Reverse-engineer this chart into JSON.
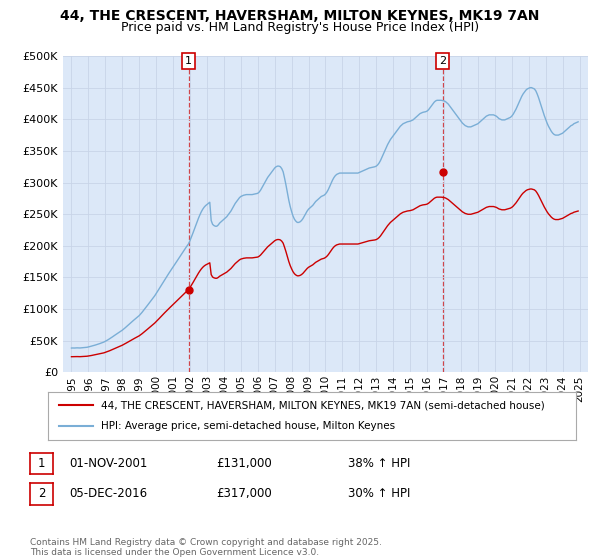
{
  "title": "44, THE CRESCENT, HAVERSHAM, MILTON KEYNES, MK19 7AN",
  "subtitle": "Price paid vs. HM Land Registry's House Price Index (HPI)",
  "background_color": "#ffffff",
  "grid_color": "#c8d4e8",
  "plot_bg_color": "#dce8f8",
  "sale1_date_num": 2001.917,
  "sale1_price": 131000,
  "sale2_date_num": 2016.917,
  "sale2_price": 317000,
  "red_line_color": "#cc0000",
  "blue_line_color": "#7aaed6",
  "legend_label_red": "44, THE CRESCENT, HAVERSHAM, MILTON KEYNES, MK19 7AN (semi-detached house)",
  "legend_label_blue": "HPI: Average price, semi-detached house, Milton Keynes",
  "annotation1_label": "1",
  "annotation1_date": "01-NOV-2001",
  "annotation1_price": "£131,000",
  "annotation1_hpi": "38% ↑ HPI",
  "annotation2_label": "2",
  "annotation2_date": "05-DEC-2016",
  "annotation2_price": "£317,000",
  "annotation2_hpi": "30% ↑ HPI",
  "footer_text": "Contains HM Land Registry data © Crown copyright and database right 2025.\nThis data is licensed under the Open Government Licence v3.0.",
  "ylim_max": 500000,
  "ylim_min": 0,
  "xlim_min": 1994.5,
  "xlim_max": 2025.5,
  "xlabel_years": [
    1995,
    1996,
    1997,
    1998,
    1999,
    2000,
    2001,
    2002,
    2003,
    2004,
    2005,
    2006,
    2007,
    2008,
    2009,
    2010,
    2011,
    2012,
    2013,
    2014,
    2015,
    2016,
    2017,
    2018,
    2019,
    2020,
    2021,
    2022,
    2023,
    2024,
    2025
  ],
  "hpi_dates": [
    1995.0,
    1995.083,
    1995.167,
    1995.25,
    1995.333,
    1995.417,
    1995.5,
    1995.583,
    1995.667,
    1995.75,
    1995.833,
    1995.917,
    1996.0,
    1996.083,
    1996.167,
    1996.25,
    1996.333,
    1996.417,
    1996.5,
    1996.583,
    1996.667,
    1996.75,
    1996.833,
    1996.917,
    1997.0,
    1997.083,
    1997.167,
    1997.25,
    1997.333,
    1997.417,
    1997.5,
    1997.583,
    1997.667,
    1997.75,
    1997.833,
    1997.917,
    1998.0,
    1998.083,
    1998.167,
    1998.25,
    1998.333,
    1998.417,
    1998.5,
    1998.583,
    1998.667,
    1998.75,
    1998.833,
    1998.917,
    1999.0,
    1999.083,
    1999.167,
    1999.25,
    1999.333,
    1999.417,
    1999.5,
    1999.583,
    1999.667,
    1999.75,
    1999.833,
    1999.917,
    2000.0,
    2000.083,
    2000.167,
    2000.25,
    2000.333,
    2000.417,
    2000.5,
    2000.583,
    2000.667,
    2000.75,
    2000.833,
    2000.917,
    2001.0,
    2001.083,
    2001.167,
    2001.25,
    2001.333,
    2001.417,
    2001.5,
    2001.583,
    2001.667,
    2001.75,
    2001.833,
    2001.917,
    2002.0,
    2002.083,
    2002.167,
    2002.25,
    2002.333,
    2002.417,
    2002.5,
    2002.583,
    2002.667,
    2002.75,
    2002.833,
    2002.917,
    2003.0,
    2003.083,
    2003.167,
    2003.25,
    2003.333,
    2003.417,
    2003.5,
    2003.583,
    2003.667,
    2003.75,
    2003.833,
    2003.917,
    2004.0,
    2004.083,
    2004.167,
    2004.25,
    2004.333,
    2004.417,
    2004.5,
    2004.583,
    2004.667,
    2004.75,
    2004.833,
    2004.917,
    2005.0,
    2005.083,
    2005.167,
    2005.25,
    2005.333,
    2005.417,
    2005.5,
    2005.583,
    2005.667,
    2005.75,
    2005.833,
    2005.917,
    2006.0,
    2006.083,
    2006.167,
    2006.25,
    2006.333,
    2006.417,
    2006.5,
    2006.583,
    2006.667,
    2006.75,
    2006.833,
    2006.917,
    2007.0,
    2007.083,
    2007.167,
    2007.25,
    2007.333,
    2007.417,
    2007.5,
    2007.583,
    2007.667,
    2007.75,
    2007.833,
    2007.917,
    2008.0,
    2008.083,
    2008.167,
    2008.25,
    2008.333,
    2008.417,
    2008.5,
    2008.583,
    2008.667,
    2008.75,
    2008.833,
    2008.917,
    2009.0,
    2009.083,
    2009.167,
    2009.25,
    2009.333,
    2009.417,
    2009.5,
    2009.583,
    2009.667,
    2009.75,
    2009.833,
    2009.917,
    2010.0,
    2010.083,
    2010.167,
    2010.25,
    2010.333,
    2010.417,
    2010.5,
    2010.583,
    2010.667,
    2010.75,
    2010.833,
    2010.917,
    2011.0,
    2011.083,
    2011.167,
    2011.25,
    2011.333,
    2011.417,
    2011.5,
    2011.583,
    2011.667,
    2011.75,
    2011.833,
    2011.917,
    2012.0,
    2012.083,
    2012.167,
    2012.25,
    2012.333,
    2012.417,
    2012.5,
    2012.583,
    2012.667,
    2012.75,
    2012.833,
    2012.917,
    2013.0,
    2013.083,
    2013.167,
    2013.25,
    2013.333,
    2013.417,
    2013.5,
    2013.583,
    2013.667,
    2013.75,
    2013.833,
    2013.917,
    2014.0,
    2014.083,
    2014.167,
    2014.25,
    2014.333,
    2014.417,
    2014.5,
    2014.583,
    2014.667,
    2014.75,
    2014.833,
    2014.917,
    2015.0,
    2015.083,
    2015.167,
    2015.25,
    2015.333,
    2015.417,
    2015.5,
    2015.583,
    2015.667,
    2015.75,
    2015.833,
    2015.917,
    2016.0,
    2016.083,
    2016.167,
    2016.25,
    2016.333,
    2016.417,
    2016.5,
    2016.583,
    2016.667,
    2016.75,
    2016.833,
    2016.917,
    2017.0,
    2017.083,
    2017.167,
    2017.25,
    2017.333,
    2017.417,
    2017.5,
    2017.583,
    2017.667,
    2017.75,
    2017.833,
    2017.917,
    2018.0,
    2018.083,
    2018.167,
    2018.25,
    2018.333,
    2018.417,
    2018.5,
    2018.583,
    2018.667,
    2018.75,
    2018.833,
    2018.917,
    2019.0,
    2019.083,
    2019.167,
    2019.25,
    2019.333,
    2019.417,
    2019.5,
    2019.583,
    2019.667,
    2019.75,
    2019.833,
    2019.917,
    2020.0,
    2020.083,
    2020.167,
    2020.25,
    2020.333,
    2020.417,
    2020.5,
    2020.583,
    2020.667,
    2020.75,
    2020.833,
    2020.917,
    2021.0,
    2021.083,
    2021.167,
    2021.25,
    2021.333,
    2021.417,
    2021.5,
    2021.583,
    2021.667,
    2021.75,
    2021.833,
    2021.917,
    2022.0,
    2022.083,
    2022.167,
    2022.25,
    2022.333,
    2022.417,
    2022.5,
    2022.583,
    2022.667,
    2022.75,
    2022.833,
    2022.917,
    2023.0,
    2023.083,
    2023.167,
    2023.25,
    2023.333,
    2023.417,
    2023.5,
    2023.583,
    2023.667,
    2023.75,
    2023.833,
    2023.917,
    2024.0,
    2024.083,
    2024.167,
    2024.25,
    2024.333,
    2024.417,
    2024.5,
    2024.583,
    2024.667,
    2024.75,
    2024.833,
    2024.917
  ],
  "hpi_values": [
    38500,
    38600,
    38500,
    38700,
    38800,
    38700,
    38600,
    38800,
    39000,
    39200,
    39400,
    39700,
    40200,
    40800,
    41400,
    42100,
    42700,
    43300,
    44000,
    44700,
    45500,
    46300,
    47100,
    48000,
    49200,
    50400,
    51700,
    53100,
    54600,
    56100,
    57700,
    59200,
    60700,
    62200,
    63700,
    65200,
    66700,
    68500,
    70400,
    72400,
    74400,
    76400,
    78400,
    80400,
    82300,
    84200,
    86000,
    87900,
    89800,
    92300,
    94900,
    97700,
    100500,
    103400,
    106400,
    109300,
    112200,
    115200,
    118200,
    121100,
    124500,
    128100,
    131700,
    135400,
    139100,
    142700,
    146200,
    149700,
    153200,
    156600,
    159900,
    163200,
    166500,
    169900,
    173300,
    176700,
    180100,
    183500,
    186900,
    190300,
    193700,
    197000,
    200200,
    203400,
    208400,
    214000,
    219800,
    225800,
    231900,
    238000,
    243700,
    249000,
    253800,
    257800,
    261000,
    263500,
    265300,
    267100,
    268900,
    240000,
    234000,
    232000,
    231000,
    231000,
    233000,
    236000,
    238000,
    240000,
    242000,
    244000,
    246000,
    249000,
    252000,
    255000,
    259000,
    263000,
    267000,
    270000,
    273000,
    276000,
    278000,
    279000,
    280000,
    280500,
    281000,
    281000,
    281000,
    281000,
    281000,
    281500,
    282000,
    282500,
    283000,
    285000,
    288000,
    292000,
    296000,
    300000,
    304000,
    308000,
    311000,
    314000,
    317000,
    320000,
    323000,
    325000,
    326000,
    326000,
    325000,
    322000,
    317000,
    307000,
    296000,
    284000,
    272000,
    262000,
    254000,
    247000,
    242000,
    239000,
    237000,
    237000,
    238000,
    240000,
    243000,
    247000,
    251000,
    255000,
    258000,
    260000,
    262000,
    264000,
    267000,
    270000,
    272000,
    274000,
    276000,
    278000,
    279000,
    280000,
    282000,
    285000,
    289000,
    294000,
    299000,
    304000,
    308000,
    311000,
    313000,
    314000,
    315000,
    315000,
    315000,
    315000,
    315000,
    315000,
    315000,
    315000,
    315000,
    315000,
    315000,
    315000,
    315000,
    315000,
    316000,
    317000,
    318000,
    319000,
    320000,
    321000,
    322000,
    323000,
    323500,
    324000,
    324500,
    325000,
    326000,
    328000,
    331000,
    335000,
    340000,
    345000,
    350000,
    355000,
    360000,
    364000,
    368000,
    371000,
    374000,
    377000,
    380000,
    383000,
    386000,
    389000,
    391000,
    393000,
    394000,
    395000,
    396000,
    396500,
    397000,
    398000,
    399000,
    401000,
    403000,
    405000,
    407000,
    409000,
    410000,
    411000,
    411500,
    412000,
    413000,
    415000,
    418000,
    421000,
    424000,
    427000,
    429000,
    430000,
    430000,
    430000,
    430000,
    429500,
    429000,
    428000,
    426000,
    424000,
    421000,
    418000,
    415000,
    412000,
    409000,
    406000,
    403000,
    400000,
    397000,
    394000,
    392000,
    390000,
    389000,
    388000,
    388000,
    388000,
    389000,
    390000,
    391000,
    392000,
    393000,
    395000,
    397000,
    399000,
    401000,
    403000,
    405000,
    406000,
    407000,
    407000,
    407000,
    407000,
    406000,
    405000,
    403000,
    401000,
    400000,
    399000,
    399000,
    399000,
    400000,
    401000,
    402000,
    403000,
    405000,
    408000,
    412000,
    416000,
    421000,
    426000,
    431000,
    436000,
    440000,
    443000,
    446000,
    448000,
    449000,
    450000,
    450000,
    449000,
    448000,
    445000,
    440000,
    434000,
    427000,
    420000,
    413000,
    406000,
    400000,
    394000,
    389000,
    385000,
    381000,
    378000,
    376000,
    375000,
    375000,
    375000,
    376000,
    377000,
    378000,
    380000,
    382000,
    384000,
    386000,
    388000,
    390000,
    391000,
    393000,
    394000,
    395000,
    396000
  ]
}
